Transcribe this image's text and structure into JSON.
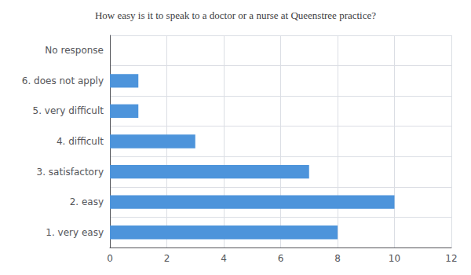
{
  "chart_data": {
    "type": "bar",
    "orientation": "horizontal",
    "title": "How easy is it to speak to a doctor or a nurse at Queenstree practice?",
    "categories": [
      "1. very easy",
      "2. easy",
      "3. satisfactory",
      "4. difficult",
      "5. very difficult",
      "6. does not apply",
      "No response"
    ],
    "values": [
      8,
      10,
      7,
      3,
      1,
      1,
      0
    ],
    "color": "#4d94db",
    "xlim": [
      0,
      12
    ],
    "xticks": [
      0,
      2,
      4,
      6,
      8,
      10,
      12
    ],
    "grid": true
  }
}
